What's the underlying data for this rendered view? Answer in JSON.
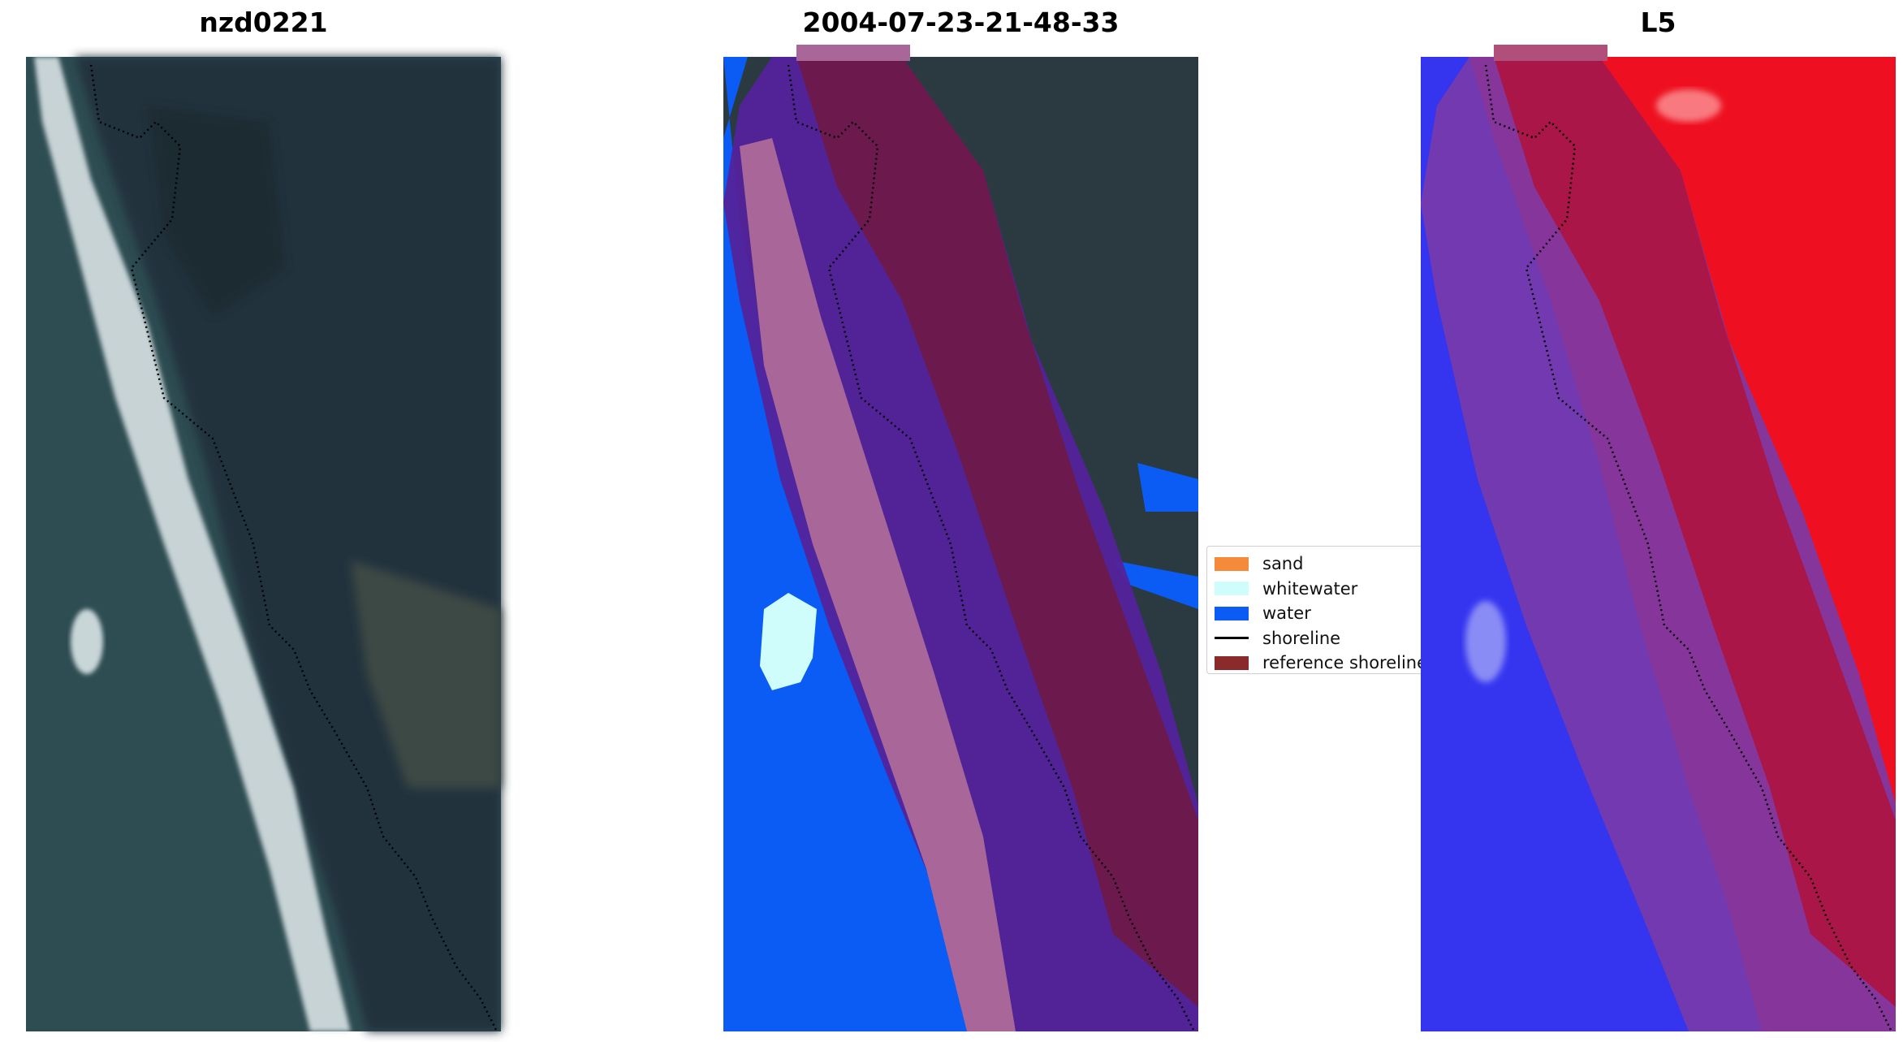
{
  "panels": [
    {
      "title": "nzd0221"
    },
    {
      "title": "2004-07-23-21-48-33"
    },
    {
      "title": "L5"
    }
  ],
  "legend": {
    "items": [
      {
        "label": "sand",
        "color": "#f58a3a",
        "kind": "patch"
      },
      {
        "label": "whitewater",
        "color": "#cffdfc",
        "kind": "patch"
      },
      {
        "label": "water",
        "color": "#0a5cf5",
        "kind": "patch"
      },
      {
        "label": "shoreline",
        "color": "#000000",
        "kind": "line"
      },
      {
        "label": "reference shoreline",
        "color": "#8b2a2a",
        "kind": "patch"
      }
    ]
  },
  "colors": {
    "rgb_ocean": "#2b4a4e",
    "rgb_land": "#27363f",
    "surf": "#e8eef0",
    "class_water": "#0a5cf5",
    "class_whitewater": "#cffdfc",
    "buffer_purple": "#53229b",
    "buffer_pink": "#a86699",
    "buffer_maroon": "#6e1a4a",
    "index_blue": "#3535f0",
    "index_red": "#ee1020",
    "index_purple": "#7a3aa8",
    "index_maroon": "#b0103a"
  }
}
